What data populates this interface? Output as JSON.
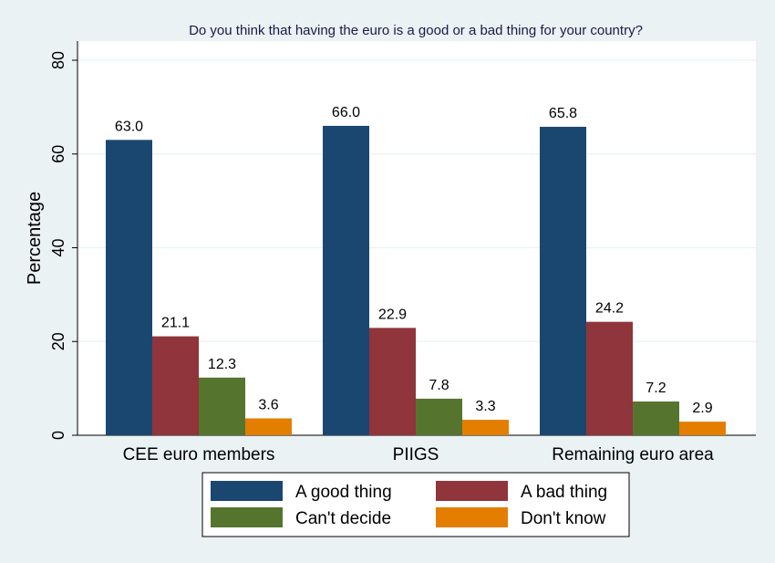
{
  "chart_data": {
    "type": "bar",
    "title": "Do you think that having the euro is a good or a bad thing for your country?",
    "ylabel": "Percentage",
    "xlabel": "",
    "ylim": [
      0,
      80
    ],
    "yticks": [
      0,
      20,
      40,
      60,
      80
    ],
    "grid": true,
    "legend_position": "bottom",
    "categories": [
      "CEE euro members",
      "PIIGS",
      "Remaining euro area"
    ],
    "series": [
      {
        "name": "A good thing",
        "color": "#1a476f",
        "values": [
          63.0,
          66.0,
          65.8
        ],
        "labels": [
          "63.0",
          "66.0",
          "65.8"
        ]
      },
      {
        "name": "A bad thing",
        "color": "#90353b",
        "values": [
          21.1,
          22.9,
          24.2
        ],
        "labels": [
          "21.1",
          "22.9",
          "24.2"
        ]
      },
      {
        "name": "Can't decide",
        "color": "#55752f",
        "values": [
          12.3,
          7.8,
          7.2
        ],
        "labels": [
          "12.3",
          "7.8",
          "7.2"
        ]
      },
      {
        "name": "Don't know",
        "color": "#e37e00",
        "values": [
          3.6,
          3.3,
          2.9
        ],
        "labels": [
          "3.6",
          "3.3",
          "2.9"
        ]
      }
    ]
  }
}
